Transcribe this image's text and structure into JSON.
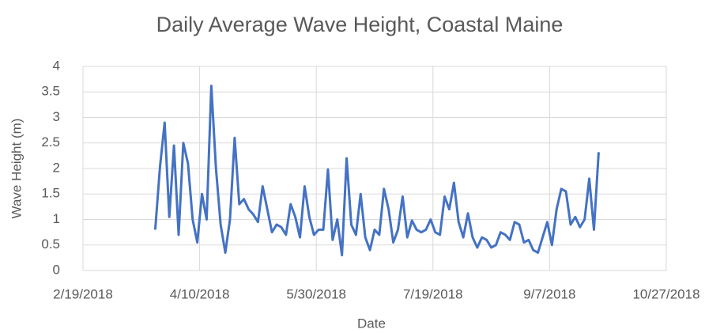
{
  "chart_data": {
    "type": "line",
    "title": "Daily Average Wave Height, Coastal Maine",
    "x_label": "Date",
    "y_label": "Wave Height (m)",
    "x": [
      "3/22/2018",
      "3/24/2018",
      "3/26/2018",
      "3/28/2018",
      "3/30/2018",
      "4/1/2018",
      "4/3/2018",
      "4/5/2018",
      "4/7/2018",
      "4/9/2018",
      "4/11/2018",
      "4/13/2018",
      "4/15/2018",
      "4/17/2018",
      "4/19/2018",
      "4/21/2018",
      "4/23/2018",
      "4/25/2018",
      "4/27/2018",
      "4/29/2018",
      "5/1/2018",
      "5/3/2018",
      "5/5/2018",
      "5/7/2018",
      "5/9/2018",
      "5/11/2018",
      "5/13/2018",
      "5/15/2018",
      "5/17/2018",
      "5/19/2018",
      "5/21/2018",
      "5/23/2018",
      "5/25/2018",
      "5/27/2018",
      "5/29/2018",
      "5/31/2018",
      "6/2/2018",
      "6/4/2018",
      "6/6/2018",
      "6/8/2018",
      "6/10/2018",
      "6/12/2018",
      "6/14/2018",
      "6/16/2018",
      "6/18/2018",
      "6/20/2018",
      "6/22/2018",
      "6/24/2018",
      "6/26/2018",
      "6/28/2018",
      "6/30/2018",
      "7/2/2018",
      "7/4/2018",
      "7/6/2018",
      "7/8/2018",
      "7/10/2018",
      "7/12/2018",
      "7/14/2018",
      "7/16/2018",
      "7/18/2018",
      "7/20/2018",
      "7/22/2018",
      "7/24/2018",
      "7/26/2018",
      "7/28/2018",
      "7/30/2018",
      "8/1/2018",
      "8/3/2018",
      "8/5/2018",
      "8/7/2018",
      "8/9/2018",
      "8/11/2018",
      "8/13/2018",
      "8/15/2018",
      "8/17/2018",
      "8/19/2018",
      "8/21/2018",
      "8/23/2018",
      "8/25/2018",
      "8/27/2018",
      "8/29/2018",
      "8/31/2018",
      "9/2/2018",
      "9/4/2018",
      "9/6/2018",
      "9/8/2018",
      "9/10/2018",
      "9/12/2018",
      "9/14/2018",
      "9/16/2018",
      "9/18/2018",
      "9/20/2018",
      "9/22/2018",
      "9/24/2018",
      "9/26/2018",
      "9/28/2018"
    ],
    "series": [
      {
        "name": "Wave Height",
        "color": "#4472c4",
        "values": [
          0.82,
          2.03,
          2.9,
          1.05,
          2.45,
          0.7,
          2.5,
          2.1,
          1.0,
          0.55,
          1.5,
          1.0,
          3.62,
          2.0,
          0.9,
          0.35,
          1.0,
          2.6,
          1.3,
          1.4,
          1.2,
          1.1,
          0.95,
          1.65,
          1.2,
          0.75,
          0.9,
          0.85,
          0.7,
          1.3,
          1.05,
          0.65,
          1.65,
          1.05,
          0.7,
          0.8,
          0.8,
          1.98,
          0.6,
          1.0,
          0.3,
          2.2,
          0.9,
          0.7,
          1.5,
          0.65,
          0.4,
          0.8,
          0.7,
          1.6,
          1.2,
          0.55,
          0.8,
          1.45,
          0.65,
          0.98,
          0.8,
          0.75,
          0.8,
          1.0,
          0.75,
          0.7,
          1.45,
          1.2,
          1.72,
          0.95,
          0.65,
          1.12,
          0.65,
          0.45,
          0.65,
          0.6,
          0.45,
          0.5,
          0.75,
          0.7,
          0.6,
          0.95,
          0.9,
          0.55,
          0.6,
          0.4,
          0.35,
          0.65,
          0.95,
          0.5,
          1.2,
          1.6,
          1.55,
          0.9,
          1.05,
          0.85,
          1.0,
          1.8,
          0.8,
          2.3
        ]
      }
    ],
    "xlim": [
      "2/19/2018",
      "10/27/2018"
    ],
    "xticks": [
      "2/19/2018",
      "4/10/2018",
      "5/30/2018",
      "7/19/2018",
      "9/7/2018",
      "10/27/2018"
    ],
    "ylim": [
      0,
      4
    ],
    "yticks": [
      0,
      0.5,
      1,
      1.5,
      2,
      2.5,
      3,
      3.5,
      4
    ],
    "grid": true
  }
}
